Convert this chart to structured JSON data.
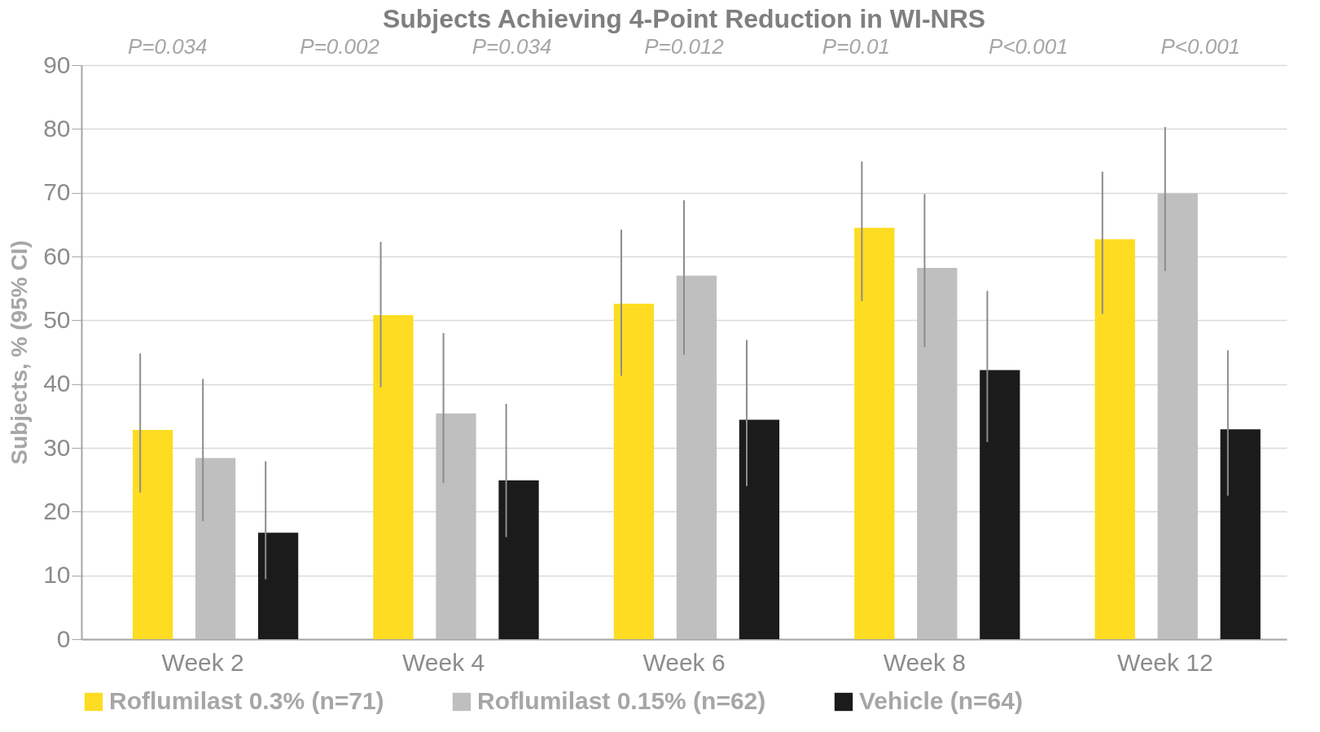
{
  "chart_data": {
    "type": "bar",
    "title": "Subjects Achieving 4-Point Reduction in WI-NRS",
    "ylabel": "Subjects, % (95% CI)",
    "categories": [
      "Week 2",
      "Week 4",
      "Week 6",
      "Week 8",
      "Week 12"
    ],
    "series": [
      {
        "name": "Roflumilast 0.3% (n=71)",
        "color": "#fddc22",
        "values": [
          32.8,
          50.8,
          52.6,
          64.5,
          62.7
        ],
        "errors": [
          [
            23,
            44.8
          ],
          [
            39.5,
            62.3
          ],
          [
            41.3,
            64.2
          ],
          [
            53,
            74.9
          ],
          [
            51,
            73.3
          ]
        ]
      },
      {
        "name": "Roflumilast 0.15% (n=62)",
        "color": "#bfbfbf",
        "values": [
          28.4,
          35.4,
          57,
          58.2,
          69.9
        ],
        "errors": [
          [
            18.5,
            40.8
          ],
          [
            24.5,
            48
          ],
          [
            44.6,
            68.8
          ],
          [
            45.8,
            69.8
          ],
          [
            57.7,
            80.3
          ]
        ]
      },
      {
        "name": "Vehicle (n=64)",
        "color": "#1b1b1b",
        "values": [
          16.7,
          24.9,
          34.4,
          42.2,
          32.9
        ],
        "errors": [
          [
            9.4,
            27.9
          ],
          [
            16,
            36.9
          ],
          [
            24,
            46.9
          ],
          [
            30.9,
            54.6
          ],
          [
            22.5,
            45.3
          ]
        ]
      }
    ],
    "annotations": [
      "P=0.034",
      "P=0.002",
      "P=0.034",
      "P=0.012",
      "P=0.01",
      "P<0.001",
      "P<0.001"
    ],
    "ylim": [
      0,
      90
    ],
    "yticks": [
      0,
      10,
      20,
      30,
      40,
      50,
      60,
      70,
      80,
      90
    ],
    "grid": "y",
    "legend": "bottom"
  }
}
